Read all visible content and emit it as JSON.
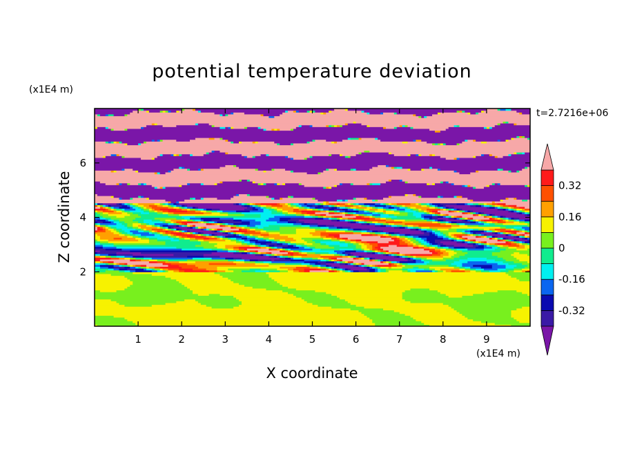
{
  "chart_data": {
    "type": "heatmap",
    "title": "potential temperature deviation",
    "xlabel": "X coordinate",
    "ylabel": "Z coordinate",
    "x_unit": "(x1E4 m)",
    "y_unit": "(x1E4 m)",
    "time_label": "t=2.7216e+06",
    "xlim": [
      0,
      10
    ],
    "ylim": [
      0,
      8
    ],
    "x_ticks": [
      "1",
      "2",
      "3",
      "4",
      "5",
      "6",
      "7",
      "8",
      "9"
    ],
    "y_ticks": [
      "2",
      "4",
      "6"
    ],
    "colorbar": {
      "levels": [
        -0.4,
        -0.32,
        -0.24,
        -0.16,
        -0.08,
        0,
        0.08,
        0.16,
        0.24,
        0.32,
        0.4
      ],
      "labels": [
        "0.32",
        "0.16",
        "0",
        "-0.16",
        "-0.32"
      ],
      "label_values": [
        0.32,
        0.16,
        0,
        -0.16,
        -0.32
      ],
      "colors": [
        "#7a16a8",
        "#3a1aa6",
        "#0a0ab0",
        "#0a66f0",
        "#00f0f0",
        "#10ec8e",
        "#78f01e",
        "#f7f200",
        "#ffa000",
        "#ff5000",
        "#ff1a1a",
        "#f7a8a8"
      ],
      "extend": "both"
    },
    "regions": [
      {
        "z_range": [
          0,
          2
        ],
        "description_values": [
          0,
          0.08
        ],
        "pattern": "smooth"
      },
      {
        "z_range": [
          2,
          4.5
        ],
        "description_values": [
          -0.4,
          0.4
        ],
        "pattern": "turbulent"
      },
      {
        "z_range": [
          4.5,
          8
        ],
        "description_values": [
          -0.4,
          0.4
        ],
        "pattern": "banded"
      }
    ]
  }
}
